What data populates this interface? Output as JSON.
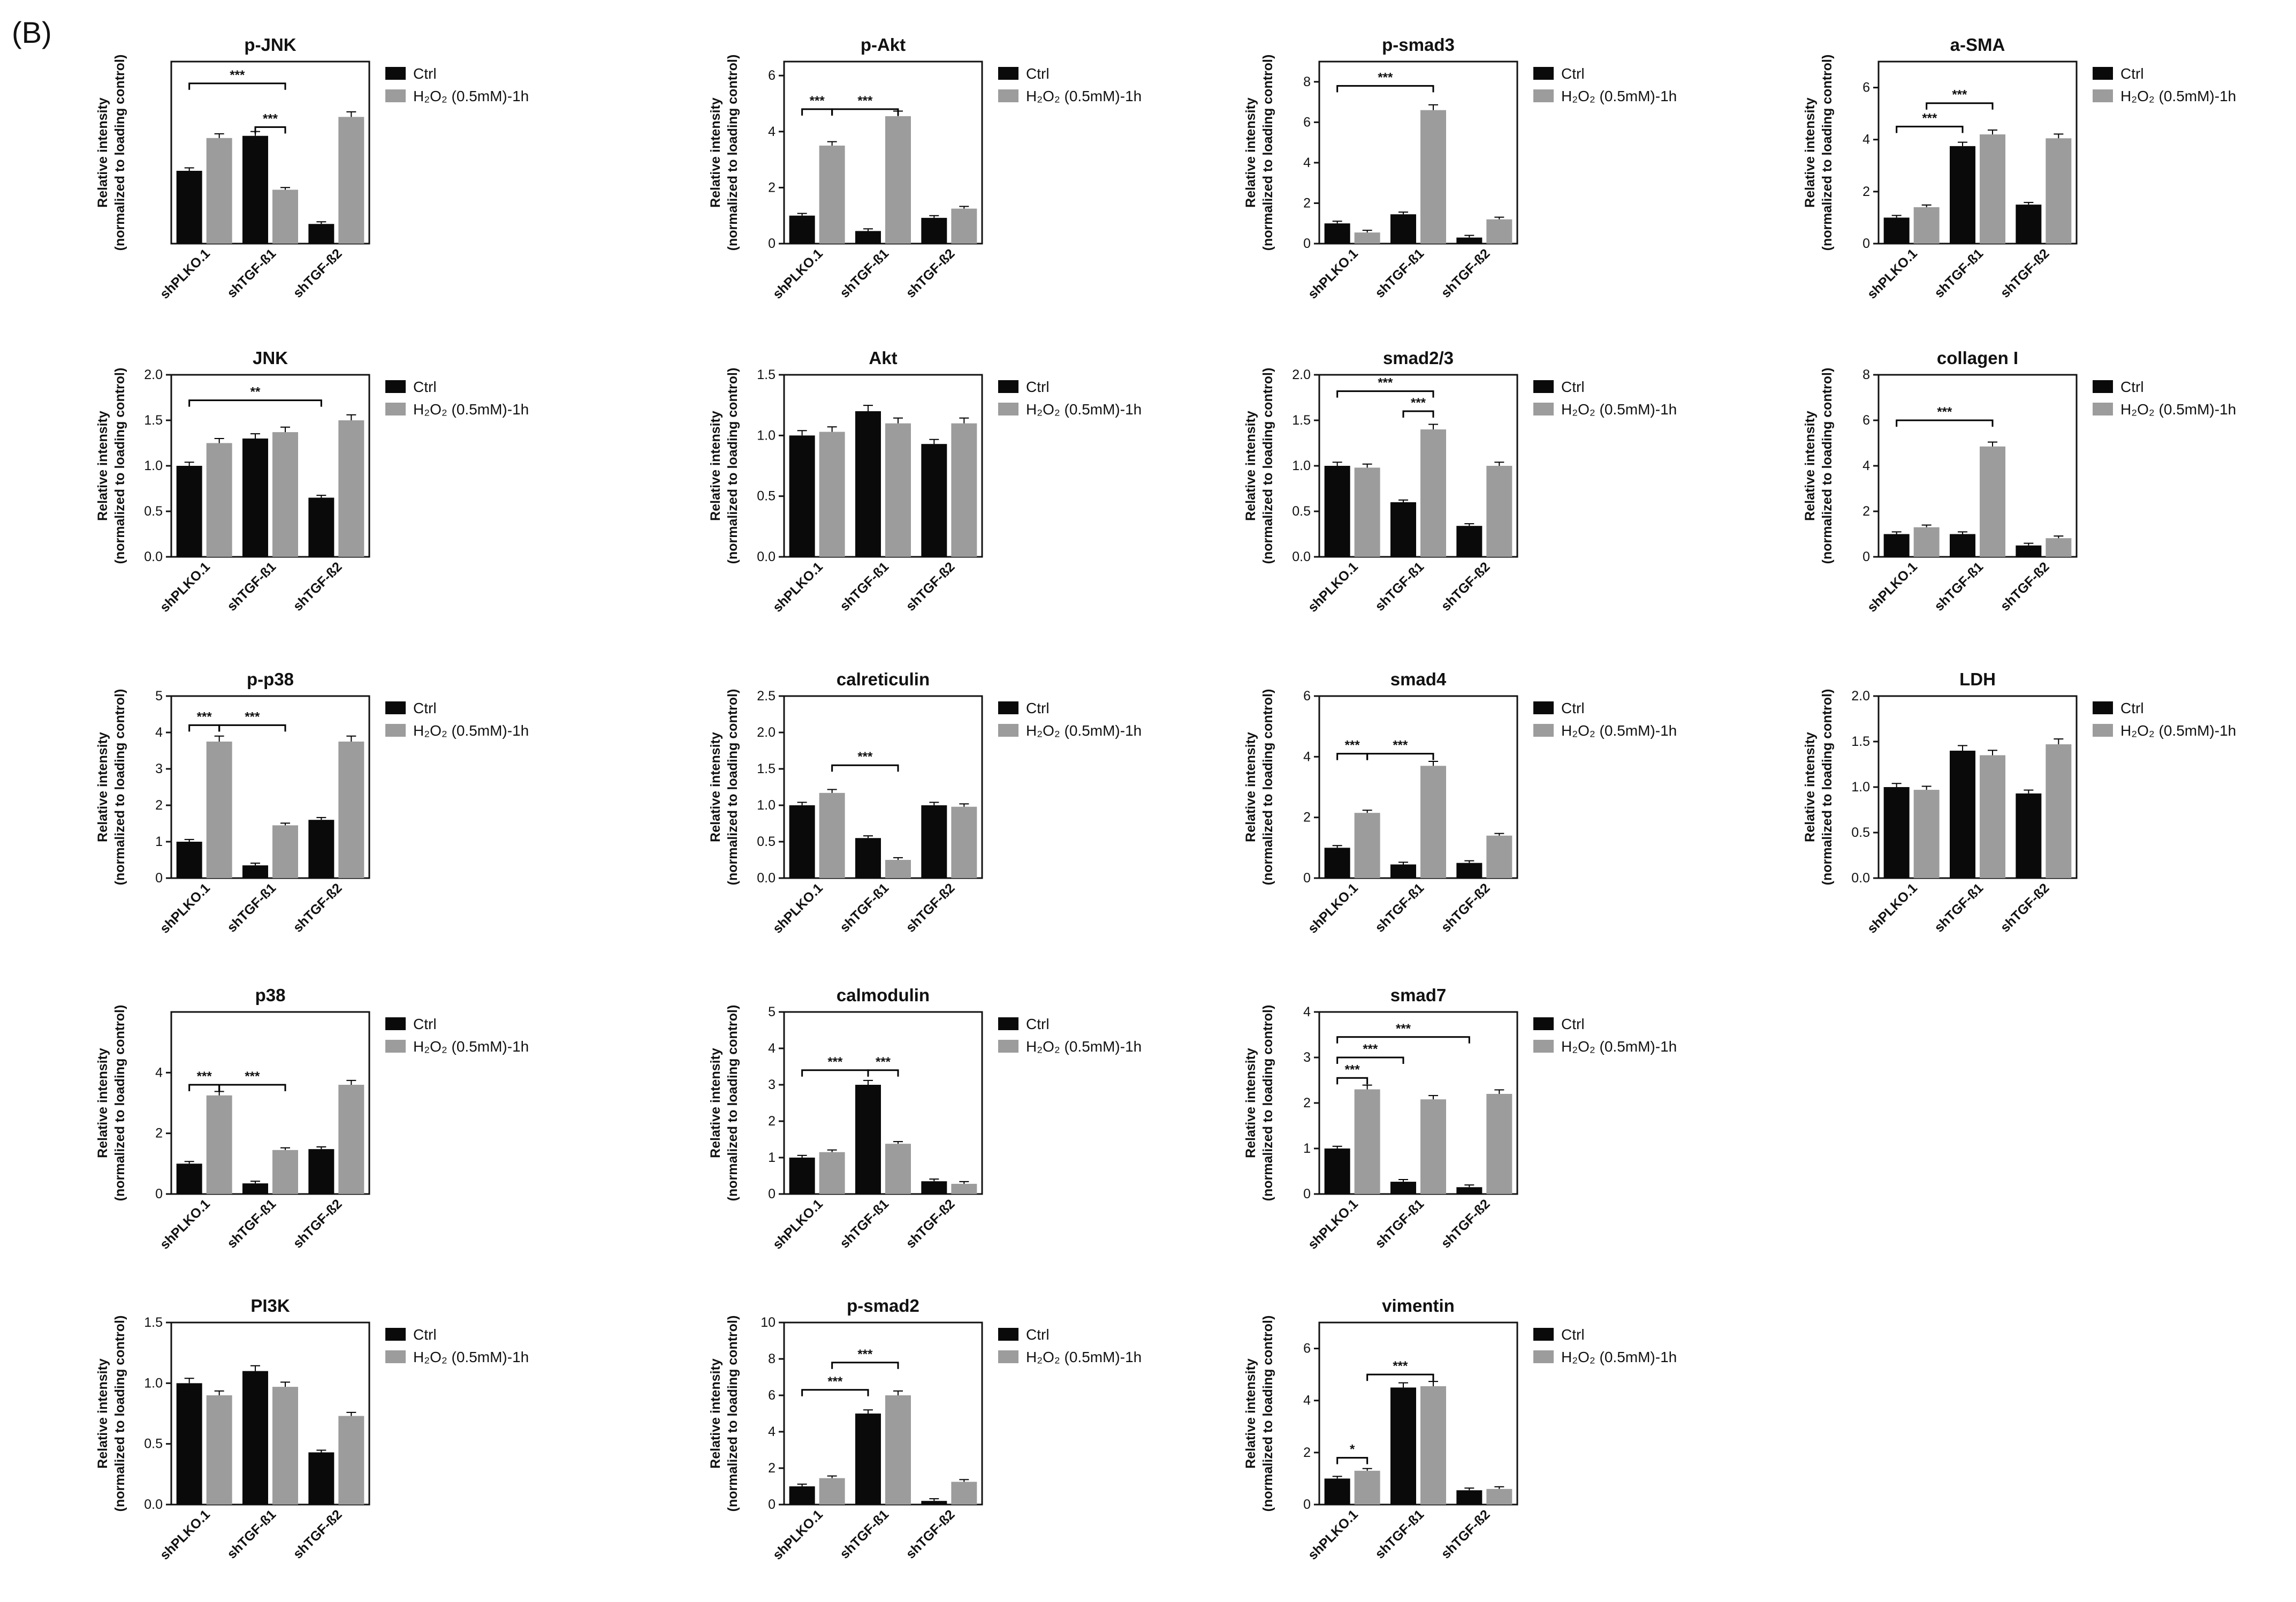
{
  "figure_label": "(B)",
  "colors": {
    "ctrl": "#0a0a0a",
    "h2o2": "#9c9c9c",
    "axis": "#111111"
  },
  "legend": {
    "ctrl": "Ctrl",
    "h2o2": "H₂O₂ (0.5mM)-1h"
  },
  "ylabel_line1": "Relative intensity",
  "ylabel_line2": "(normalized to loading control)",
  "chart_data": [
    {
      "type": "bar",
      "title": "p-JNK",
      "categories": [
        "shPLKO.1",
        "shTGF-ß1",
        "shTGF-ß2"
      ],
      "series": [
        {
          "name": "Ctrl",
          "values": [
            1.0,
            1.48,
            0.27
          ]
        },
        {
          "name": "H₂O₂ (0.5mM)-1h",
          "values": [
            1.45,
            0.74,
            1.74
          ]
        }
      ],
      "ylim": [
        0,
        2.5
      ],
      "yticks": [],
      "sig": [
        {
          "from": [
            1,
            0
          ],
          "to": [
            1,
            1
          ],
          "label": "***",
          "y": 1.6
        },
        {
          "from": [
            0,
            0
          ],
          "to": [
            1,
            1
          ],
          "label": "***",
          "y": 2.2
        }
      ]
    },
    {
      "type": "bar",
      "title": "p-Akt",
      "categories": [
        "shPLKO.1",
        "shTGF-ß1",
        "shTGF-ß2"
      ],
      "series": [
        {
          "name": "Ctrl",
          "values": [
            1.0,
            0.45,
            0.92
          ]
        },
        {
          "name": "H₂O₂ (0.5mM)-1h",
          "values": [
            3.5,
            4.55,
            1.25
          ]
        }
      ],
      "ylim": [
        0,
        6.5
      ],
      "yticks": [
        0,
        2,
        4,
        6
      ],
      "sig": [
        {
          "from": [
            0,
            0
          ],
          "to": [
            0,
            1
          ],
          "label": "***",
          "y": 4.8
        },
        {
          "from": [
            0,
            1
          ],
          "to": [
            1,
            1
          ],
          "label": "***",
          "y": 4.8
        }
      ]
    },
    {
      "type": "bar",
      "title": "p-smad3",
      "categories": [
        "shPLKO.1",
        "shTGF-ß1",
        "shTGF-ß2"
      ],
      "series": [
        {
          "name": "Ctrl",
          "values": [
            1.0,
            1.45,
            0.3
          ]
        },
        {
          "name": "H₂O₂ (0.5mM)-1h",
          "values": [
            0.55,
            6.6,
            1.2
          ]
        }
      ],
      "ylim": [
        0,
        9
      ],
      "yticks": [
        0,
        2,
        4,
        6,
        8
      ],
      "sig": [
        {
          "from": [
            0,
            0
          ],
          "to": [
            1,
            1
          ],
          "label": "***",
          "y": 7.8
        }
      ]
    },
    {
      "type": "bar",
      "title": "a-SMA",
      "categories": [
        "shPLKO.1",
        "shTGF-ß1",
        "shTGF-ß2"
      ],
      "series": [
        {
          "name": "Ctrl",
          "values": [
            1.0,
            3.75,
            1.5
          ]
        },
        {
          "name": "H₂O₂ (0.5mM)-1h",
          "values": [
            1.4,
            4.2,
            4.05
          ]
        }
      ],
      "ylim": [
        0,
        7
      ],
      "yticks": [
        0,
        2,
        4,
        6
      ],
      "sig": [
        {
          "from": [
            0,
            0
          ],
          "to": [
            1,
            0
          ],
          "label": "***",
          "y": 4.5
        },
        {
          "from": [
            0,
            1
          ],
          "to": [
            1,
            1
          ],
          "label": "***",
          "y": 5.4
        }
      ]
    },
    {
      "type": "bar",
      "title": "JNK",
      "categories": [
        "shPLKO.1",
        "shTGF-ß1",
        "shTGF-ß2"
      ],
      "series": [
        {
          "name": "Ctrl",
          "values": [
            1.0,
            1.3,
            0.65
          ]
        },
        {
          "name": "H₂O₂ (0.5mM)-1h",
          "values": [
            1.25,
            1.37,
            1.5
          ]
        }
      ],
      "ylim": [
        0,
        2.0
      ],
      "yticks": [
        0.0,
        0.5,
        1.0,
        1.5,
        2.0
      ],
      "sig": [
        {
          "from": [
            0,
            0
          ],
          "to": [
            2,
            0
          ],
          "label": "**",
          "y": 1.72
        }
      ]
    },
    {
      "type": "bar",
      "title": "Akt",
      "categories": [
        "shPLKO.1",
        "shTGF-ß1",
        "shTGF-ß2"
      ],
      "series": [
        {
          "name": "Ctrl",
          "values": [
            1.0,
            1.2,
            0.93
          ]
        },
        {
          "name": "H₂O₂ (0.5mM)-1h",
          "values": [
            1.03,
            1.1,
            1.1
          ]
        }
      ],
      "ylim": [
        0,
        1.5
      ],
      "yticks": [
        0.0,
        0.5,
        1.0,
        1.5
      ],
      "sig": []
    },
    {
      "type": "bar",
      "title": "smad2/3",
      "categories": [
        "shPLKO.1",
        "shTGF-ß1",
        "shTGF-ß2"
      ],
      "series": [
        {
          "name": "Ctrl",
          "values": [
            1.0,
            0.6,
            0.34
          ]
        },
        {
          "name": "H₂O₂ (0.5mM)-1h",
          "values": [
            0.98,
            1.4,
            1.0
          ]
        }
      ],
      "ylim": [
        0,
        2.0
      ],
      "yticks": [
        0.0,
        0.5,
        1.0,
        1.5,
        2.0
      ],
      "sig": [
        {
          "from": [
            1,
            0
          ],
          "to": [
            1,
            1
          ],
          "label": "***",
          "y": 1.6
        },
        {
          "from": [
            0,
            0
          ],
          "to": [
            1,
            1
          ],
          "label": "***",
          "y": 1.82
        }
      ]
    },
    {
      "type": "bar",
      "title": "collagen I",
      "categories": [
        "shPLKO.1",
        "shTGF-ß1",
        "shTGF-ß2"
      ],
      "series": [
        {
          "name": "Ctrl",
          "values": [
            1.0,
            1.0,
            0.5
          ]
        },
        {
          "name": "H₂O₂ (0.5mM)-1h",
          "values": [
            1.3,
            4.85,
            0.82
          ]
        }
      ],
      "ylim": [
        0,
        8
      ],
      "yticks": [
        0,
        2,
        4,
        6,
        8
      ],
      "sig": [
        {
          "from": [
            0,
            0
          ],
          "to": [
            1,
            1
          ],
          "label": "***",
          "y": 6.0
        }
      ]
    },
    {
      "type": "bar",
      "title": "p-p38",
      "categories": [
        "shPLKO.1",
        "shTGF-ß1",
        "shTGF-ß2"
      ],
      "series": [
        {
          "name": "Ctrl",
          "values": [
            1.0,
            0.35,
            1.6
          ]
        },
        {
          "name": "H₂O₂ (0.5mM)-1h",
          "values": [
            3.75,
            1.45,
            3.75
          ]
        }
      ],
      "ylim": [
        0,
        5
      ],
      "yticks": [
        0,
        1,
        2,
        3,
        4,
        5
      ],
      "sig": [
        {
          "from": [
            0,
            0
          ],
          "to": [
            0,
            1
          ],
          "label": "***",
          "y": 4.2
        },
        {
          "from": [
            0,
            1
          ],
          "to": [
            1,
            1
          ],
          "label": "***",
          "y": 4.2
        }
      ]
    },
    {
      "type": "bar",
      "title": "calreticulin",
      "categories": [
        "shPLKO.1",
        "shTGF-ß1",
        "shTGF-ß2"
      ],
      "series": [
        {
          "name": "Ctrl",
          "values": [
            1.0,
            0.55,
            1.0
          ]
        },
        {
          "name": "H₂O₂ (0.5mM)-1h",
          "values": [
            1.17,
            0.25,
            0.98
          ]
        }
      ],
      "ylim": [
        0,
        2.5
      ],
      "yticks": [
        0.0,
        0.5,
        1.0,
        1.5,
        2.0,
        2.5
      ],
      "sig": [
        {
          "from": [
            0,
            1
          ],
          "to": [
            1,
            1
          ],
          "label": "***",
          "y": 1.55
        }
      ]
    },
    {
      "type": "bar",
      "title": "smad4",
      "categories": [
        "shPLKO.1",
        "shTGF-ß1",
        "shTGF-ß2"
      ],
      "series": [
        {
          "name": "Ctrl",
          "values": [
            1.0,
            0.45,
            0.5
          ]
        },
        {
          "name": "H₂O₂ (0.5mM)-1h",
          "values": [
            2.15,
            3.7,
            1.4
          ]
        }
      ],
      "ylim": [
        0,
        6
      ],
      "yticks": [
        0,
        2,
        4,
        6
      ],
      "sig": [
        {
          "from": [
            0,
            0
          ],
          "to": [
            0,
            1
          ],
          "label": "***",
          "y": 4.1
        },
        {
          "from": [
            0,
            1
          ],
          "to": [
            1,
            1
          ],
          "label": "***",
          "y": 4.1
        }
      ]
    },
    {
      "type": "bar",
      "title": "LDH",
      "categories": [
        "shPLKO.1",
        "shTGF-ß1",
        "shTGF-ß2"
      ],
      "series": [
        {
          "name": "Ctrl",
          "values": [
            1.0,
            1.4,
            0.93
          ]
        },
        {
          "name": "H₂O₂ (0.5mM)-1h",
          "values": [
            0.97,
            1.35,
            1.47
          ]
        }
      ],
      "ylim": [
        0,
        2.0
      ],
      "yticks": [
        0.0,
        0.5,
        1.0,
        1.5,
        2.0
      ],
      "sig": []
    },
    {
      "type": "bar",
      "title": "p38",
      "categories": [
        "shPLKO.1",
        "shTGF-ß1",
        "shTGF-ß2"
      ],
      "series": [
        {
          "name": "Ctrl",
          "values": [
            1.0,
            0.35,
            1.48
          ]
        },
        {
          "name": "H₂O₂ (0.5mM)-1h",
          "values": [
            3.25,
            1.45,
            3.6
          ]
        }
      ],
      "ylim": [
        0,
        6
      ],
      "yticks": [
        0,
        2,
        4
      ],
      "sig": [
        {
          "from": [
            0,
            0
          ],
          "to": [
            0,
            1
          ],
          "label": "***",
          "y": 3.6
        },
        {
          "from": [
            0,
            1
          ],
          "to": [
            1,
            1
          ],
          "label": "***",
          "y": 3.6
        }
      ]
    },
    {
      "type": "bar",
      "title": "calmodulin",
      "categories": [
        "shPLKO.1",
        "shTGF-ß1",
        "shTGF-ß2"
      ],
      "series": [
        {
          "name": "Ctrl",
          "values": [
            1.0,
            3.0,
            0.35
          ]
        },
        {
          "name": "H₂O₂ (0.5mM)-1h",
          "values": [
            1.15,
            1.38,
            0.28
          ]
        }
      ],
      "ylim": [
        0,
        5
      ],
      "yticks": [
        0,
        1,
        2,
        3,
        4,
        5
      ],
      "sig": [
        {
          "from": [
            0,
            0
          ],
          "to": [
            1,
            0
          ],
          "label": "***",
          "y": 3.4
        },
        {
          "from": [
            1,
            0
          ],
          "to": [
            1,
            1
          ],
          "label": "***",
          "y": 3.4
        }
      ]
    },
    {
      "type": "bar",
      "title": "smad7",
      "categories": [
        "shPLKO.1",
        "shTGF-ß1",
        "shTGF-ß2"
      ],
      "series": [
        {
          "name": "Ctrl",
          "values": [
            1.0,
            0.27,
            0.15
          ]
        },
        {
          "name": "H₂O₂ (0.5mM)-1h",
          "values": [
            2.3,
            2.08,
            2.2
          ]
        }
      ],
      "ylim": [
        0,
        4
      ],
      "yticks": [
        0,
        1,
        2,
        3,
        4
      ],
      "sig": [
        {
          "from": [
            0,
            0
          ],
          "to": [
            0,
            1
          ],
          "label": "***",
          "y": 2.55
        },
        {
          "from": [
            0,
            0
          ],
          "to": [
            1,
            0
          ],
          "label": "***",
          "y": 3.0
        },
        {
          "from": [
            0,
            0
          ],
          "to": [
            2,
            0
          ],
          "label": "***",
          "y": 3.45
        }
      ]
    },
    {
      "type": "bar",
      "title": "PI3K",
      "categories": [
        "shPLKO.1",
        "shTGF-ß1",
        "shTGF-ß2"
      ],
      "series": [
        {
          "name": "Ctrl",
          "values": [
            1.0,
            1.1,
            0.43
          ]
        },
        {
          "name": "H₂O₂ (0.5mM)-1h",
          "values": [
            0.9,
            0.97,
            0.73
          ]
        }
      ],
      "ylim": [
        0,
        1.5
      ],
      "yticks": [
        0.0,
        0.5,
        1.0,
        1.5
      ],
      "sig": []
    },
    {
      "type": "bar",
      "title": "p-smad2",
      "categories": [
        "shPLKO.1",
        "shTGF-ß1",
        "shTGF-ß2"
      ],
      "series": [
        {
          "name": "Ctrl",
          "values": [
            1.0,
            5.0,
            0.2
          ]
        },
        {
          "name": "H₂O₂ (0.5mM)-1h",
          "values": [
            1.45,
            6.0,
            1.25
          ]
        }
      ],
      "ylim": [
        0,
        10
      ],
      "yticks": [
        0,
        2,
        4,
        6,
        8,
        10
      ],
      "sig": [
        {
          "from": [
            0,
            0
          ],
          "to": [
            1,
            0
          ],
          "label": "***",
          "y": 6.3
        },
        {
          "from": [
            0,
            1
          ],
          "to": [
            1,
            1
          ],
          "label": "***",
          "y": 7.8
        }
      ]
    },
    {
      "type": "bar",
      "title": "vimentin",
      "categories": [
        "shPLKO.1",
        "shTGF-ß1",
        "shTGF-ß2"
      ],
      "series": [
        {
          "name": "Ctrl",
          "values": [
            1.0,
            4.5,
            0.55
          ]
        },
        {
          "name": "H₂O₂ (0.5mM)-1h",
          "values": [
            1.3,
            4.55,
            0.6
          ]
        }
      ],
      "ylim": [
        0,
        7
      ],
      "yticks": [
        0,
        2,
        4,
        6
      ],
      "sig": [
        {
          "from": [
            0,
            0
          ],
          "to": [
            0,
            1
          ],
          "label": "*",
          "y": 1.8
        },
        {
          "from": [
            0,
            1
          ],
          "to": [
            1,
            1
          ],
          "label": "***",
          "y": 5.0
        }
      ]
    }
  ]
}
